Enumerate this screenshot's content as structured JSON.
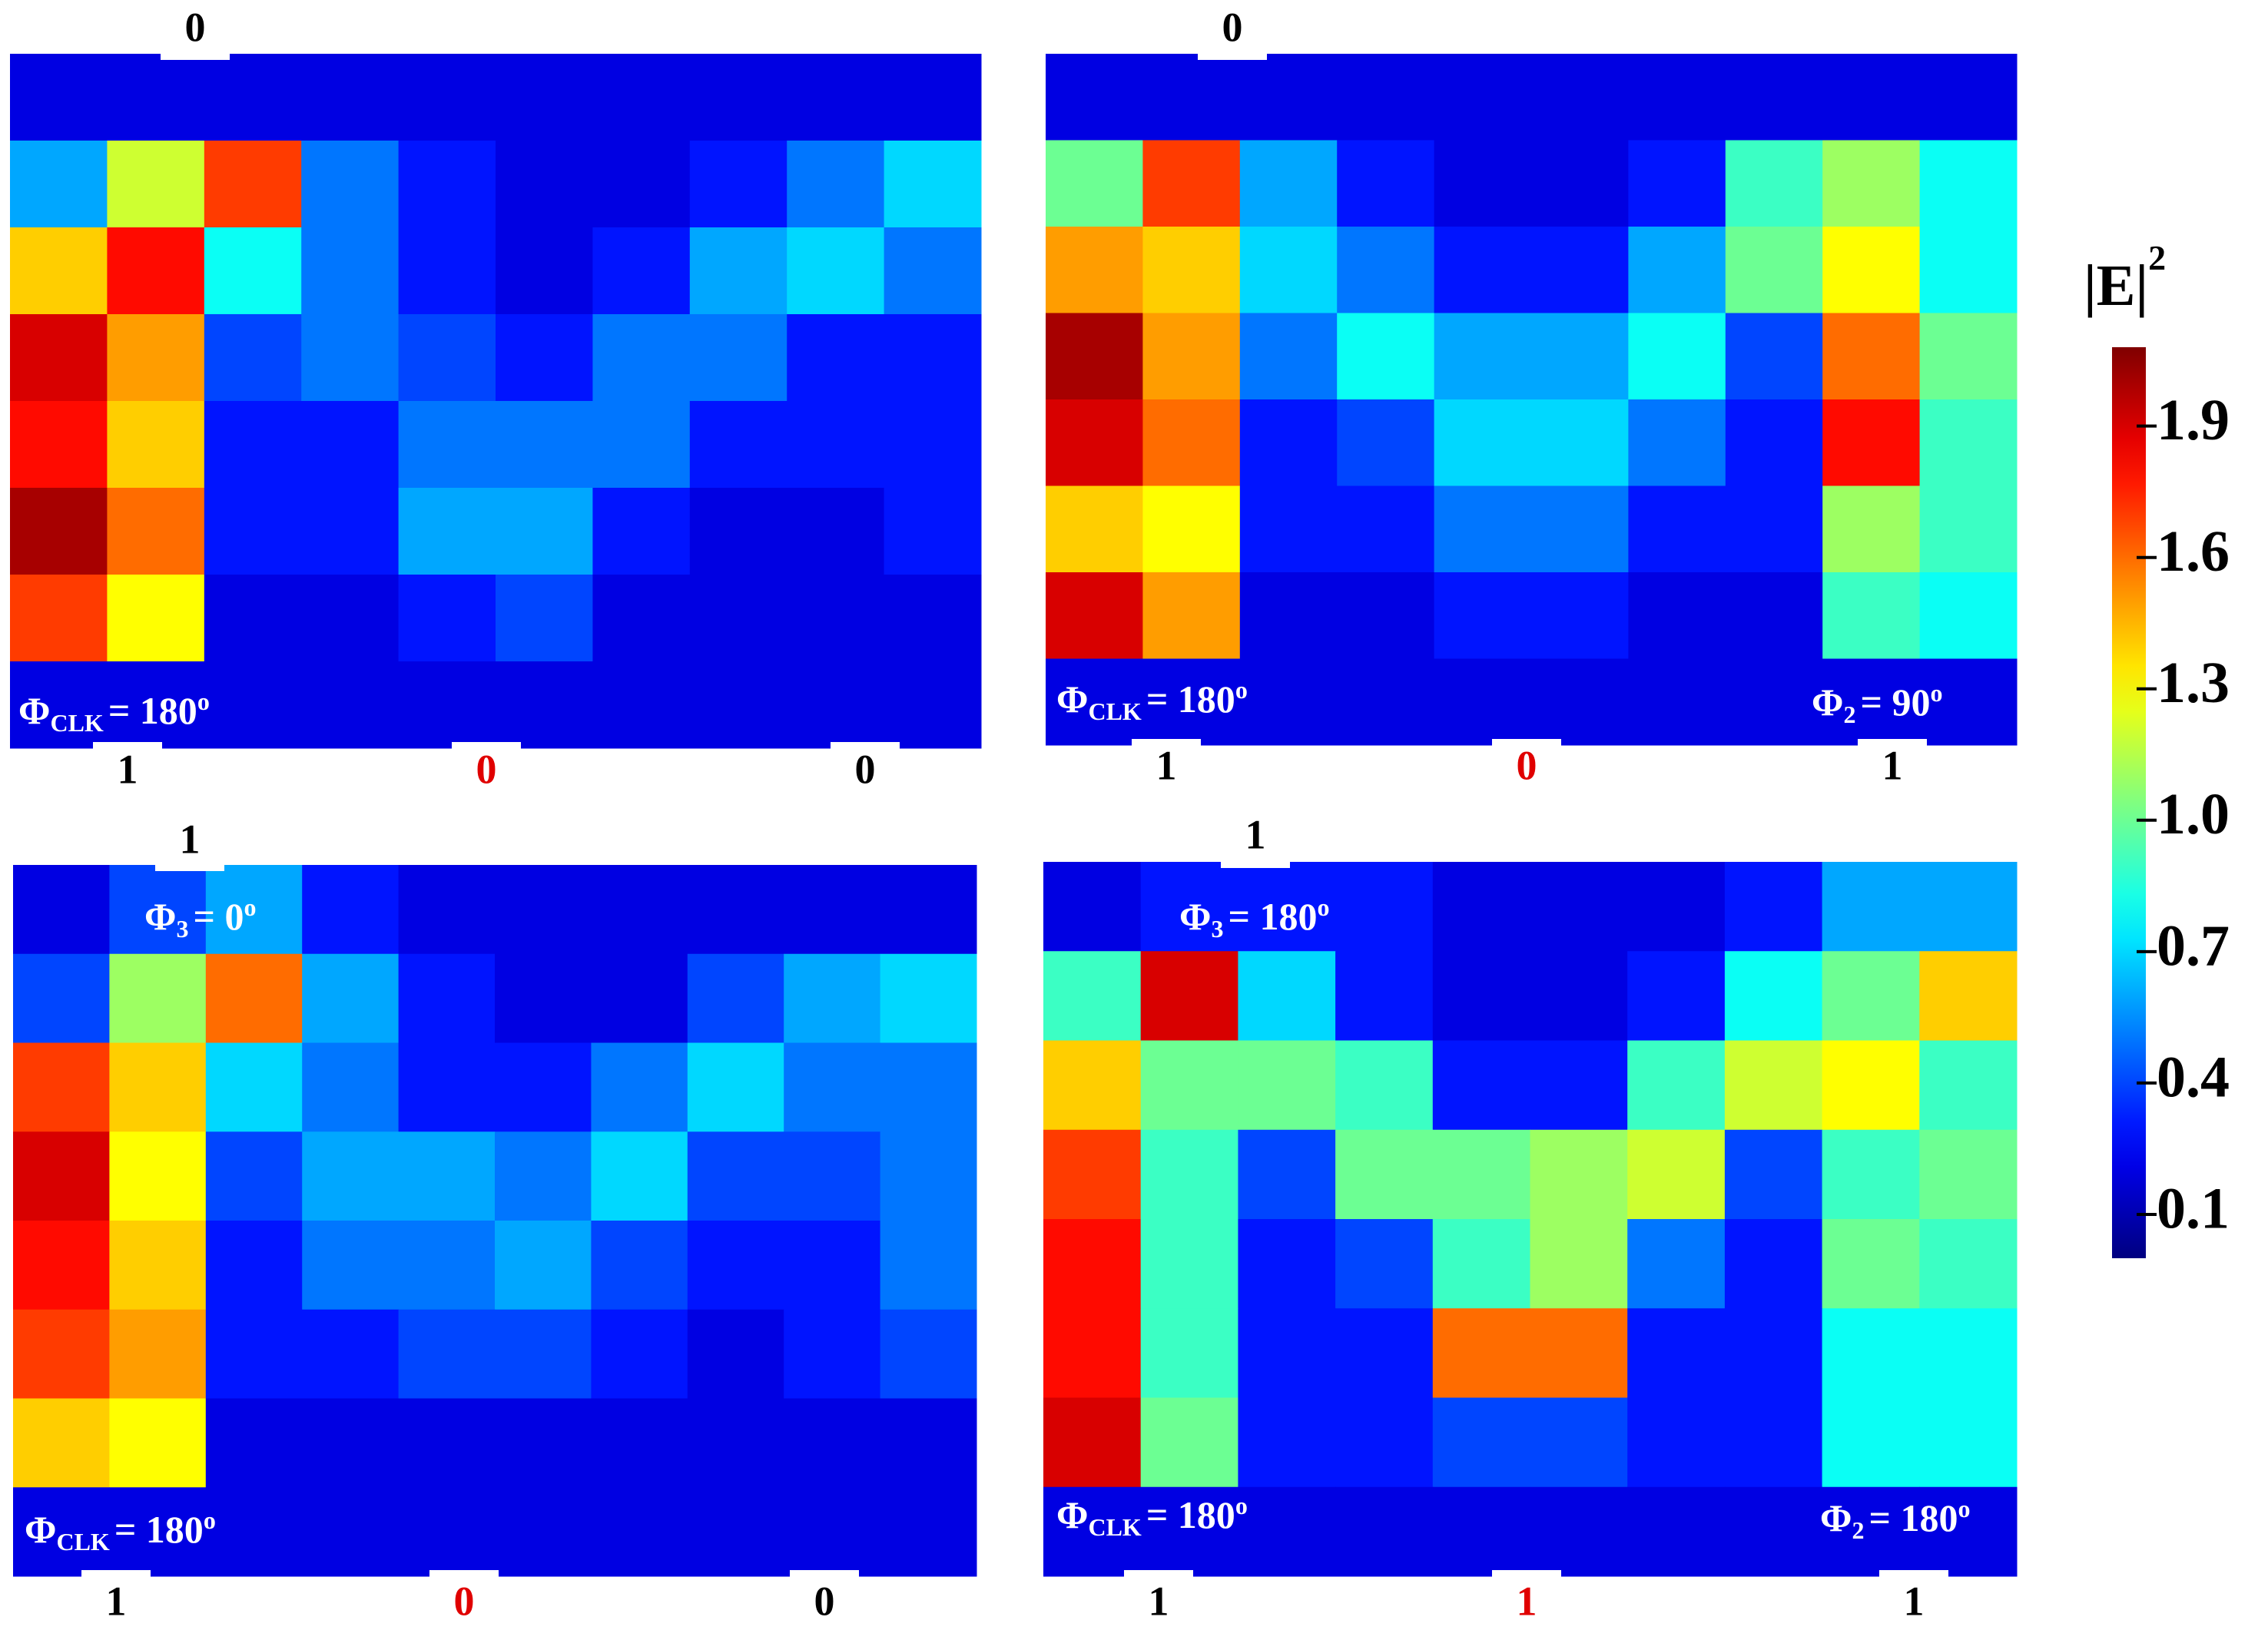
{
  "panels": [
    {
      "top_label": {
        "text": "0",
        "color": "#000000"
      },
      "bottom_labels": [
        {
          "text": "1",
          "color": "#000000"
        },
        {
          "text": "0",
          "color": "#e00000"
        },
        {
          "text": "0",
          "color": "#000000"
        }
      ],
      "phase_labels": [
        {
          "symbol": "Φ",
          "sub": "CLK",
          "value": "= 180",
          "sup": "o"
        }
      ],
      "grid": [
        [
          0.2,
          0.2,
          0.2,
          0.2,
          0.2,
          0.2,
          0.2,
          0.2,
          0.2,
          0.2
        ],
        [
          0.6,
          1.2,
          1.7,
          0.5,
          0.3,
          0.2,
          0.2,
          0.3,
          0.5,
          0.7
        ],
        [
          1.4,
          1.8,
          0.8,
          0.5,
          0.3,
          0.2,
          0.3,
          0.6,
          0.7,
          0.5
        ],
        [
          1.9,
          1.5,
          0.4,
          0.5,
          0.4,
          0.3,
          0.5,
          0.5,
          0.3,
          0.3
        ],
        [
          1.8,
          1.4,
          0.3,
          0.3,
          0.5,
          0.5,
          0.5,
          0.3,
          0.3,
          0.3
        ],
        [
          2.0,
          1.6,
          0.3,
          0.3,
          0.6,
          0.6,
          0.3,
          0.2,
          0.2,
          0.3
        ],
        [
          1.7,
          1.3,
          0.2,
          0.2,
          0.3,
          0.4,
          0.2,
          0.2,
          0.2,
          0.2
        ],
        [
          0.2,
          0.2,
          0.2,
          0.2,
          0.2,
          0.2,
          0.2,
          0.2,
          0.2,
          0.2
        ]
      ]
    },
    {
      "top_label": {
        "text": "0",
        "color": "#000000"
      },
      "bottom_labels": [
        {
          "text": "1",
          "color": "#000000"
        },
        {
          "text": "0",
          "color": "#e00000"
        },
        {
          "text": "1",
          "color": "#000000"
        }
      ],
      "phase_labels": [
        {
          "symbol": "Φ",
          "sub": "CLK",
          "value": "= 180",
          "sup": "o"
        },
        {
          "symbol": "Φ",
          "sub": "2",
          "value": "= 90",
          "sup": "o"
        }
      ],
      "grid": [
        [
          0.2,
          0.2,
          0.2,
          0.2,
          0.2,
          0.2,
          0.2,
          0.2,
          0.2,
          0.2
        ],
        [
          1.0,
          1.7,
          0.6,
          0.3,
          0.2,
          0.2,
          0.3,
          0.9,
          1.1,
          0.8
        ],
        [
          1.5,
          1.4,
          0.7,
          0.5,
          0.3,
          0.3,
          0.6,
          1.0,
          1.3,
          0.8
        ],
        [
          2.0,
          1.5,
          0.5,
          0.8,
          0.6,
          0.6,
          0.8,
          0.4,
          1.6,
          1.0
        ],
        [
          1.9,
          1.6,
          0.3,
          0.4,
          0.7,
          0.7,
          0.5,
          0.3,
          1.8,
          0.9
        ],
        [
          1.4,
          1.3,
          0.3,
          0.3,
          0.5,
          0.5,
          0.3,
          0.3,
          1.1,
          0.9
        ],
        [
          1.9,
          1.5,
          0.2,
          0.2,
          0.3,
          0.3,
          0.2,
          0.2,
          0.9,
          0.8
        ],
        [
          0.2,
          0.2,
          0.2,
          0.2,
          0.2,
          0.2,
          0.2,
          0.2,
          0.2,
          0.2
        ]
      ]
    },
    {
      "top_label": {
        "text": "1",
        "color": "#000000"
      },
      "bottom_labels": [
        {
          "text": "1",
          "color": "#000000"
        },
        {
          "text": "0",
          "color": "#e00000"
        },
        {
          "text": "0",
          "color": "#000000"
        }
      ],
      "phase_labels": [
        {
          "symbol": "Φ",
          "sub": "3",
          "value": "= 0",
          "sup": "o"
        },
        {
          "symbol": "Φ",
          "sub": "CLK",
          "value": "= 180",
          "sup": "o"
        }
      ],
      "grid": [
        [
          0.2,
          0.4,
          0.6,
          0.3,
          0.2,
          0.2,
          0.2,
          0.2,
          0.2,
          0.2
        ],
        [
          0.4,
          1.1,
          1.6,
          0.6,
          0.3,
          0.2,
          0.2,
          0.4,
          0.6,
          0.7
        ],
        [
          1.7,
          1.4,
          0.7,
          0.5,
          0.3,
          0.3,
          0.5,
          0.7,
          0.5,
          0.5
        ],
        [
          1.9,
          1.3,
          0.4,
          0.6,
          0.6,
          0.5,
          0.7,
          0.4,
          0.4,
          0.5
        ],
        [
          1.8,
          1.4,
          0.3,
          0.5,
          0.5,
          0.6,
          0.4,
          0.3,
          0.3,
          0.5
        ],
        [
          1.7,
          1.5,
          0.3,
          0.3,
          0.4,
          0.4,
          0.3,
          0.2,
          0.3,
          0.4
        ],
        [
          1.4,
          1.3,
          0.2,
          0.2,
          0.2,
          0.2,
          0.2,
          0.2,
          0.2,
          0.2
        ],
        [
          0.2,
          0.2,
          0.2,
          0.2,
          0.2,
          0.2,
          0.2,
          0.2,
          0.2,
          0.2
        ]
      ]
    },
    {
      "top_label": {
        "text": "1",
        "color": "#000000"
      },
      "bottom_labels": [
        {
          "text": "1",
          "color": "#000000"
        },
        {
          "text": "1",
          "color": "#e00000"
        },
        {
          "text": "1",
          "color": "#000000"
        }
      ],
      "phase_labels": [
        {
          "symbol": "Φ",
          "sub": "3",
          "value": "= 180",
          "sup": "o"
        },
        {
          "symbol": "Φ",
          "sub": "CLK",
          "value": "= 180",
          "sup": "o"
        },
        {
          "symbol": "Φ",
          "sub": "2",
          "value": "= 180",
          "sup": "o"
        }
      ],
      "grid": [
        [
          0.2,
          0.3,
          0.3,
          0.3,
          0.2,
          0.2,
          0.2,
          0.3,
          0.6,
          0.6
        ],
        [
          0.9,
          1.9,
          0.7,
          0.3,
          0.2,
          0.2,
          0.3,
          0.8,
          1.0,
          1.4
        ],
        [
          1.4,
          1.0,
          1.0,
          0.9,
          0.3,
          0.3,
          0.9,
          1.2,
          1.3,
          0.9
        ],
        [
          1.7,
          0.9,
          0.4,
          1.0,
          1.0,
          1.1,
          1.2,
          0.4,
          0.9,
          1.0
        ],
        [
          1.8,
          0.9,
          0.3,
          0.4,
          0.9,
          1.1,
          0.5,
          0.3,
          1.0,
          0.9
        ],
        [
          1.8,
          0.9,
          0.3,
          0.3,
          1.6,
          1.6,
          0.3,
          0.3,
          0.8,
          0.8
        ],
        [
          1.9,
          1.0,
          0.3,
          0.3,
          0.4,
          0.4,
          0.3,
          0.3,
          0.8,
          0.8
        ],
        [
          0.2,
          0.2,
          0.2,
          0.2,
          0.2,
          0.2,
          0.2,
          0.2,
          0.2,
          0.2
        ]
      ]
    }
  ],
  "colorbar": {
    "title": "|E|",
    "title_sup": "2",
    "colormap": "jet",
    "clim": [
      0,
      2.08
    ],
    "ticks": [
      0.1,
      0.4,
      0.7,
      {
        "value": 1.0,
        "label": "1.0"
      },
      1.3,
      1.6,
      1.9
    ]
  }
}
